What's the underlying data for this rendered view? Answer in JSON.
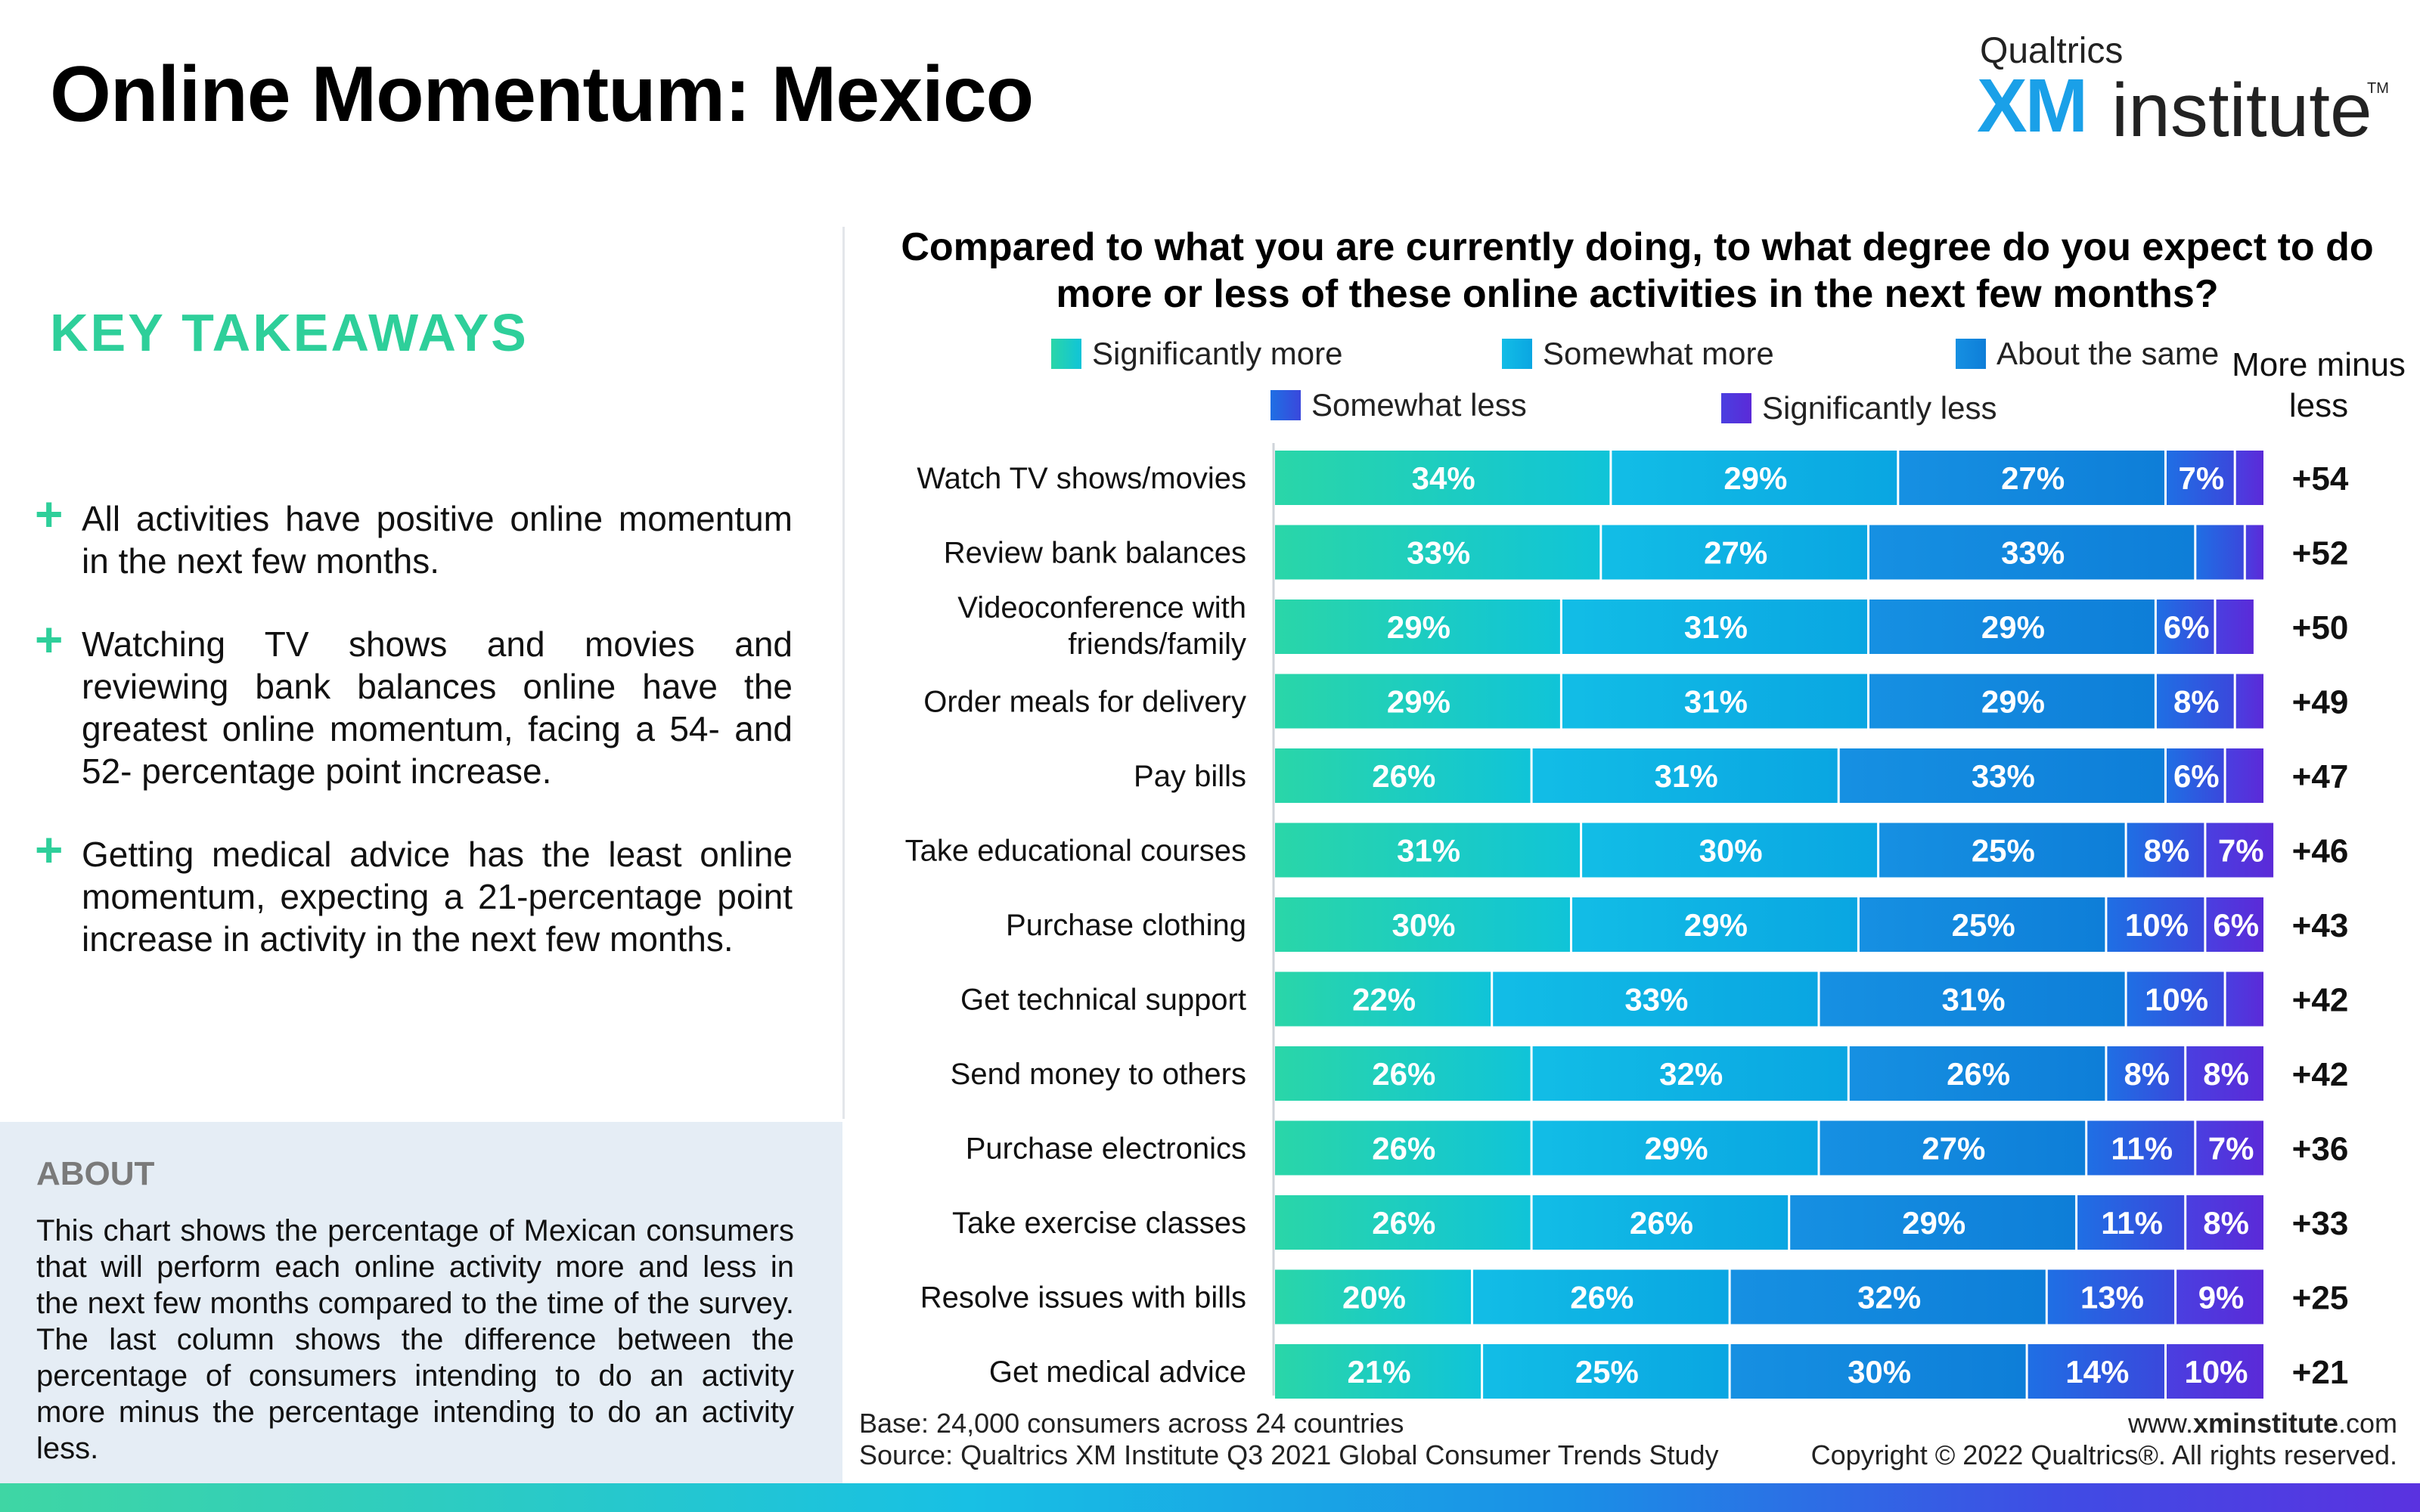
{
  "page_title": "Online Momentum: Mexico",
  "logo": {
    "top": "Qualtrics",
    "mark": "XM",
    "word": "institute",
    "tm": "TM"
  },
  "key_takeaways": {
    "heading": "KEY TAKEAWAYS",
    "bullet_icon": "+",
    "items": [
      "All activities have positive online momentum in the next few months.",
      "Watching TV shows and movies and reviewing bank balances online have the greatest online momentum, facing a 54- and 52- percentage point increase.",
      "Getting medical advice has the least online momentum, expecting a 21-percentage point increase in activity in the next few months."
    ]
  },
  "about": {
    "heading": "ABOUT",
    "text": "This chart shows the percentage of Mexican consumers that will perform each online activity more and less in the next few months compared to the time of the survey. The last column shows the difference between the percentage of consumers intending to do an activity more minus the percentage intending to do an activity less."
  },
  "colors": {
    "sig_more": [
      "#2ad6a8",
      "#10c4d8"
    ],
    "some_more": [
      "#12bde6",
      "#0aa6e2"
    ],
    "same": [
      "#1690e2",
      "#0e7ed8"
    ],
    "some_less": [
      "#1f6fe4",
      "#3a48dc"
    ],
    "sig_less": [
      "#4a3fe0",
      "#5b2ad8"
    ],
    "title_green": "#2ecf9a"
  },
  "footer": {
    "base": "Base: 24,000 consumers across 24 countries",
    "source": "Source: Qualtrics XM Institute Q3 2021 Global Consumer Trends Study",
    "website_prefix": "www.",
    "website_bold": "xminstitute",
    "website_suffix": ".com",
    "copyright": "Copyright © 2022 Qualtrics®. All rights reserved."
  },
  "chart_data": {
    "type": "bar",
    "orientation": "horizontal",
    "stacked": true,
    "title": "Compared to what you are currently doing, to what degree do you expect to do more or less of these online activities in the next few months?",
    "net_column_header": "More minus less",
    "categories": [
      "Watch TV shows/movies",
      "Review bank balances",
      "Videoconference with friends/family",
      "Order meals for delivery",
      "Pay bills",
      "Take educational courses",
      "Purchase clothing",
      "Get technical support",
      "Send money to others",
      "Purchase electronics",
      "Take exercise classes",
      "Resolve issues with bills",
      "Get medical advice"
    ],
    "series": [
      {
        "name": "Significantly more",
        "values": [
          34,
          33,
          29,
          29,
          26,
          31,
          30,
          22,
          26,
          26,
          26,
          20,
          21
        ]
      },
      {
        "name": "Somewhat more",
        "values": [
          29,
          27,
          31,
          31,
          31,
          30,
          29,
          33,
          32,
          29,
          26,
          26,
          25
        ]
      },
      {
        "name": "About the same",
        "values": [
          27,
          33,
          29,
          29,
          33,
          25,
          25,
          31,
          26,
          27,
          29,
          32,
          30
        ]
      },
      {
        "name": "Somewhat less",
        "values": [
          7,
          5,
          6,
          8,
          6,
          8,
          10,
          10,
          8,
          11,
          11,
          13,
          14
        ]
      },
      {
        "name": "Significantly less",
        "values": [
          3,
          2,
          4,
          3,
          4,
          7,
          6,
          4,
          8,
          7,
          8,
          9,
          10
        ]
      }
    ],
    "value_labels": [
      [
        "34%",
        "29%",
        "27%",
        "7%",
        ""
      ],
      [
        "33%",
        "27%",
        "33%",
        "",
        ""
      ],
      [
        "29%",
        "31%",
        "29%",
        "6%",
        ""
      ],
      [
        "29%",
        "31%",
        "29%",
        "8%",
        ""
      ],
      [
        "26%",
        "31%",
        "33%",
        "6%",
        ""
      ],
      [
        "31%",
        "30%",
        "25%",
        "8%",
        "7%"
      ],
      [
        "30%",
        "29%",
        "25%",
        "10%",
        "6%"
      ],
      [
        "22%",
        "33%",
        "31%",
        "10%",
        ""
      ],
      [
        "26%",
        "32%",
        "26%",
        "8%",
        "8%"
      ],
      [
        "26%",
        "29%",
        "27%",
        "11%",
        "7%"
      ],
      [
        "26%",
        "26%",
        "29%",
        "11%",
        "8%"
      ],
      [
        "20%",
        "26%",
        "32%",
        "13%",
        "9%"
      ],
      [
        "21%",
        "25%",
        "30%",
        "14%",
        "10%"
      ]
    ],
    "net": [
      "+54",
      "+52",
      "+50",
      "+49",
      "+47",
      "+46",
      "+43",
      "+42",
      "+42",
      "+36",
      "+33",
      "+25",
      "+21"
    ],
    "xlim": [
      0,
      100
    ]
  }
}
